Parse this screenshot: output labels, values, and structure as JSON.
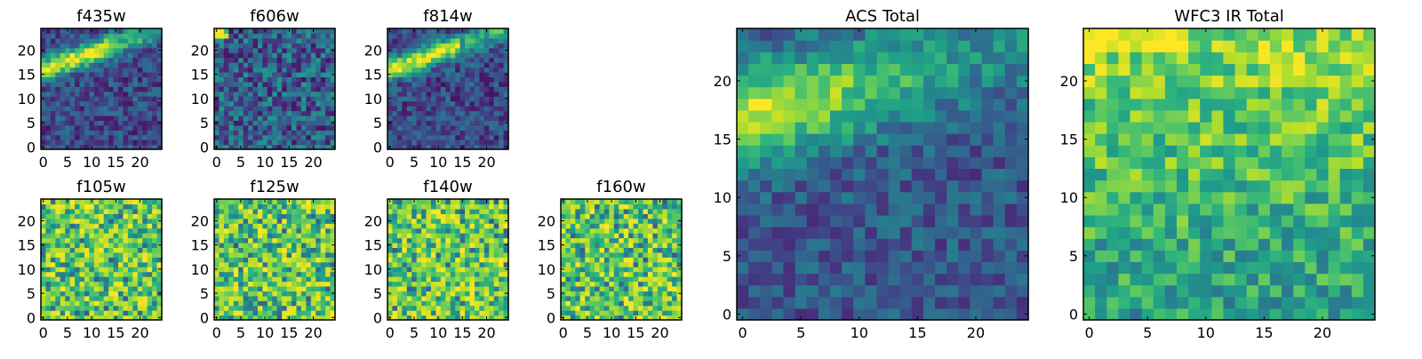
{
  "chart_data": [
    {
      "type": "heatmap",
      "title": "f435w",
      "xlim": [
        0,
        24
      ],
      "ylim": [
        0,
        24
      ],
      "xticks": [
        "0",
        "5",
        "10",
        "15",
        "20"
      ],
      "yticks": [
        "0",
        "5",
        "10",
        "15",
        "20"
      ],
      "pattern": "band",
      "colormap": "viridis",
      "grid": false
    },
    {
      "type": "heatmap",
      "title": "f606w",
      "xlim": [
        0,
        24
      ],
      "ylim": [
        0,
        24
      ],
      "xticks": [
        "0",
        "5",
        "10",
        "15",
        "20"
      ],
      "yticks": [
        "0",
        "5",
        "10",
        "15",
        "20"
      ],
      "pattern": "dark-noise",
      "colormap": "viridis",
      "grid": false
    },
    {
      "type": "heatmap",
      "title": "f814w",
      "xlim": [
        0,
        24
      ],
      "ylim": [
        0,
        24
      ],
      "xticks": [
        "0",
        "5",
        "10",
        "15",
        "20"
      ],
      "yticks": [
        "0",
        "5",
        "10",
        "15",
        "20"
      ],
      "pattern": "band",
      "colormap": "viridis",
      "grid": false
    },
    {
      "type": "heatmap",
      "title": "f105w",
      "xlim": [
        0,
        24
      ],
      "ylim": [
        0,
        24
      ],
      "xticks": [
        "0",
        "5",
        "10",
        "15",
        "20"
      ],
      "yticks": [
        "0",
        "5",
        "10",
        "15",
        "20"
      ],
      "pattern": "bright-noise",
      "colormap": "viridis",
      "grid": false
    },
    {
      "type": "heatmap",
      "title": "f125w",
      "xlim": [
        0,
        24
      ],
      "ylim": [
        0,
        24
      ],
      "xticks": [
        "0",
        "5",
        "10",
        "15",
        "20"
      ],
      "yticks": [
        "0",
        "5",
        "10",
        "15",
        "20"
      ],
      "pattern": "bright-noise",
      "colormap": "viridis",
      "grid": false
    },
    {
      "type": "heatmap",
      "title": "f140w",
      "xlim": [
        0,
        24
      ],
      "ylim": [
        0,
        24
      ],
      "xticks": [
        "0",
        "5",
        "10",
        "15",
        "20"
      ],
      "yticks": [
        "0",
        "5",
        "10",
        "15",
        "20"
      ],
      "pattern": "bright-noise",
      "colormap": "viridis",
      "grid": false
    },
    {
      "type": "heatmap",
      "title": "f160w",
      "xlim": [
        0,
        24
      ],
      "ylim": [
        0,
        24
      ],
      "xticks": [
        "0",
        "5",
        "10",
        "15",
        "20"
      ],
      "yticks": [
        "0",
        "5",
        "10",
        "15",
        "20"
      ],
      "pattern": "bright-noise",
      "colormap": "viridis",
      "grid": false
    },
    {
      "type": "heatmap",
      "title": "ACS Total",
      "xlim": [
        0,
        24
      ],
      "ylim": [
        0,
        24
      ],
      "xticks": [
        "0",
        "5",
        "10",
        "15",
        "20"
      ],
      "yticks": [
        "0",
        "5",
        "10",
        "15",
        "20"
      ],
      "pattern": "band-wide",
      "colormap": "viridis",
      "grid": false
    },
    {
      "type": "heatmap",
      "title": "WFC3 IR Total",
      "xlim": [
        0,
        24
      ],
      "ylim": [
        0,
        24
      ],
      "xticks": [
        "0",
        "5",
        "10",
        "15",
        "20"
      ],
      "yticks": [
        "0",
        "5",
        "10",
        "15",
        "20"
      ],
      "pattern": "ir-total",
      "colormap": "viridis",
      "grid": false
    }
  ]
}
